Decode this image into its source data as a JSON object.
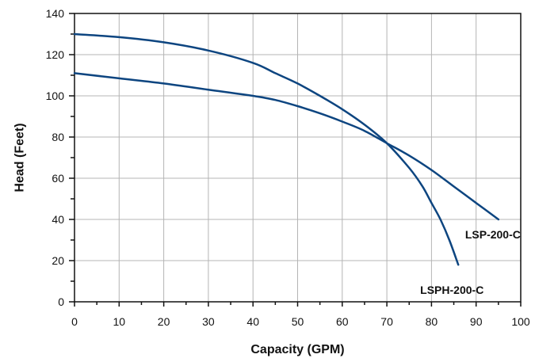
{
  "chart_data": {
    "type": "line",
    "title": "",
    "xlabel": "Capacity (GPM)",
    "ylabel": "Head (Feet)",
    "xlim": [
      0,
      100
    ],
    "ylim": [
      0,
      140
    ],
    "xticks": [
      "0",
      "10",
      "20",
      "30",
      "40",
      "50",
      "60",
      "70",
      "80",
      "90",
      "100"
    ],
    "yticks": [
      "0",
      "20",
      "40",
      "60",
      "80",
      "100",
      "120",
      "140"
    ],
    "grid": true,
    "legend": "none",
    "line_color": "#0d4580",
    "series": [
      {
        "name": "LSP-200-C",
        "x": [
          0,
          10,
          20,
          30,
          40,
          45,
          50,
          55,
          60,
          65,
          70,
          75,
          80,
          85,
          90,
          95
        ],
        "y": [
          111,
          108.5,
          106,
          103,
          100,
          98,
          95,
          91.5,
          87.5,
          83,
          77,
          71,
          64,
          56,
          48,
          40
        ]
      },
      {
        "name": "LSPH-200-C",
        "x": [
          0,
          10,
          20,
          30,
          40,
          45,
          50,
          55,
          60,
          65,
          70,
          75,
          78,
          80,
          82,
          84,
          86
        ],
        "y": [
          130,
          128.5,
          126,
          122,
          116,
          111,
          106,
          100,
          93.5,
          86,
          77,
          65,
          56,
          48,
          40,
          30,
          18
        ]
      }
    ]
  }
}
